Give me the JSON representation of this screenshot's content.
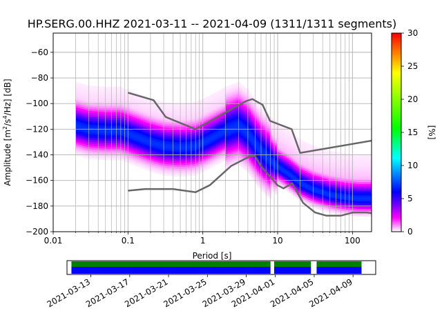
{
  "chart_data": {
    "type": "heatmap",
    "title": "HP.SERG.00.HHZ   2021-03-11 -- 2021-04-09  (1311/1311 segments)",
    "xlabel": "Period [s]",
    "ylabel_main": "Amplitude [m",
    "ylabel_sup1": "2",
    "ylabel_mid": "/s",
    "ylabel_sup2": "4",
    "ylabel_tail": "/Hz] [dB]",
    "x_scale": "log",
    "xlim": [
      0.01,
      180
    ],
    "ylim": [
      -200,
      -45
    ],
    "x_ticks": [
      {
        "value": 0.01,
        "label": "0.01"
      },
      {
        "value": 0.1,
        "label": "0.1"
      },
      {
        "value": 1,
        "label": "1"
      },
      {
        "value": 10,
        "label": "10"
      },
      {
        "value": 100,
        "label": "100"
      }
    ],
    "y_ticks": [
      {
        "value": -60,
        "label": "−60"
      },
      {
        "value": -80,
        "label": "−80"
      },
      {
        "value": -100,
        "label": "−100"
      },
      {
        "value": -120,
        "label": "−120"
      },
      {
        "value": -140,
        "label": "−140"
      },
      {
        "value": -160,
        "label": "−160"
      },
      {
        "value": -180,
        "label": "−180"
      },
      {
        "value": -200,
        "label": "−200"
      }
    ],
    "grid": true,
    "colorbar": {
      "label": "[%]",
      "range": [
        0,
        30
      ],
      "ticks": [
        {
          "value": 0,
          "label": "0"
        },
        {
          "value": 5,
          "label": "5"
        },
        {
          "value": 10,
          "label": "10"
        },
        {
          "value": 15,
          "label": "15"
        },
        {
          "value": 20,
          "label": "20"
        },
        {
          "value": 25,
          "label": "25"
        },
        {
          "value": 30,
          "label": "30"
        }
      ],
      "colors": [
        "#ffffff",
        "#ff00ff",
        "#6a00ff",
        "#0000ff",
        "#00ffff",
        "#00ff00",
        "#ffff00",
        "#ff0000"
      ]
    },
    "mode_curve": {
      "period": [
        0.02,
        0.03,
        0.05,
        0.08,
        0.12,
        0.2,
        0.3,
        0.5,
        0.8,
        1.2,
        2,
        3,
        4,
        5,
        6,
        8,
        10,
        15,
        20,
        30,
        50,
        80,
        120,
        180
      ],
      "amplitude": [
        -118,
        -121,
        -122,
        -122,
        -126,
        -131,
        -134,
        -135,
        -134,
        -129,
        -122,
        -118,
        -124,
        -132,
        -138,
        -145,
        -150,
        -157,
        -163,
        -168,
        -172,
        -174,
        -175,
        -175
      ]
    },
    "nhnm": {
      "period": [
        0.1,
        0.22,
        0.32,
        0.8,
        3.8,
        4.6,
        6.3,
        7.9,
        15.4,
        20,
        354.8
      ],
      "amplitude": [
        -91.5,
        -97.4,
        -110.5,
        -120,
        -98,
        -96.5,
        -101,
        -113.5,
        -120,
        -138.5,
        -126
      ]
    },
    "nlnm": {
      "period": [
        0.1,
        0.17,
        0.4,
        0.8,
        1.24,
        2.4,
        4.3,
        5,
        6,
        10,
        12,
        15.6,
        21.9,
        31.6,
        45,
        70,
        101,
        154,
        328
      ],
      "amplitude": [
        -168,
        -166.7,
        -166.7,
        -169.2,
        -163.7,
        -148.6,
        -141.1,
        -141.1,
        -149,
        -163.8,
        -166.2,
        -162.1,
        -177.5,
        -185,
        -187.5,
        -187.5,
        -185,
        -185,
        -187.5
      ]
    },
    "coverage": {
      "date_ticks": [
        "2021-03-13",
        "2021-03-17",
        "2021-03-21",
        "2021-03-25",
        "2021-03-29",
        "2021-04-01",
        "2021-04-05",
        "2021-04-09"
      ],
      "range": [
        "2021-03-10T13:00",
        "2021-04-11T08:00"
      ],
      "segments": [
        {
          "start": "2021-03-11T00:00",
          "end": "2021-03-31T12:00"
        },
        {
          "start": "2021-03-31T21:00",
          "end": "2021-04-04T16:00"
        },
        {
          "start": "2021-04-05T06:00",
          "end": "2021-04-09T21:00"
        }
      ]
    }
  }
}
